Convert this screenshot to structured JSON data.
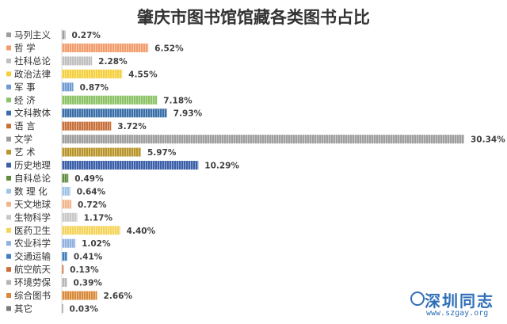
{
  "chart_data": {
    "type": "bar",
    "orientation": "horizontal",
    "title": "肇庆市图书馆馆藏各类图书占比",
    "categories": [
      "马列主义",
      "哲学",
      "社科总论",
      "政治法律",
      "军事",
      "经济",
      "文科教体",
      "语言",
      "文学",
      "艺术",
      "历史地理",
      "自科总论",
      "数理化",
      "天文地球",
      "生物科学",
      "医药卫生",
      "农业科学",
      "交通运输",
      "航空航天",
      "环境劳保",
      "综合图书",
      "其它"
    ],
    "category_display": [
      "马列主义",
      "哲 学",
      "社科总论",
      "政治法律",
      "军 事",
      "经 济",
      "文科教体",
      "语 言",
      "文学",
      "艺 术",
      "历史地理",
      "自科总论",
      "数 理 化",
      "天文地球",
      "生物科学",
      "医药卫生",
      "农业科学",
      "交通运输",
      "航空航天",
      "环境劳保",
      "综合图书",
      "其它"
    ],
    "values": [
      0.27,
      6.52,
      2.28,
      4.55,
      0.87,
      7.18,
      7.93,
      3.72,
      30.34,
      5.97,
      10.29,
      0.49,
      0.64,
      0.72,
      1.17,
      4.4,
      1.02,
      0.41,
      0.13,
      0.39,
      2.66,
      0.03
    ],
    "value_labels": [
      "0.27%",
      "6.52%",
      "2.28%",
      "4.55%",
      "0.87%",
      "7.18%",
      "7.93%",
      "3.72%",
      "30.34%",
      "5.97%",
      "10.29%",
      "0.49%",
      "0.64%",
      "0.72%",
      "1.17%",
      "4.40%",
      "1.02%",
      "0.41%",
      "0.13%",
      "0.39%",
      "2.66%",
      "0.03%"
    ],
    "unit": "%",
    "xlim": [
      0,
      30.34
    ],
    "colors": [
      "#9e9e9e",
      "#f29c6b",
      "#bfbfbf",
      "#f5cf3c",
      "#6f9ad3",
      "#8cc265",
      "#3a6ea8",
      "#c9703a",
      "#9e9e9e",
      "#b8952a",
      "#3a5ea8",
      "#5f8c3a",
      "#9ec3e6",
      "#f2b48a",
      "#c8c8c8",
      "#f5d45a",
      "#8fb0e0",
      "#3f7fbf",
      "#c9703a",
      "#b5b5b5",
      "#d88a3a",
      "#7a7a7a"
    ],
    "grid": false,
    "legend": "none"
  },
  "watermark": {
    "main": "深圳同志",
    "url": "www.szgay.org"
  }
}
